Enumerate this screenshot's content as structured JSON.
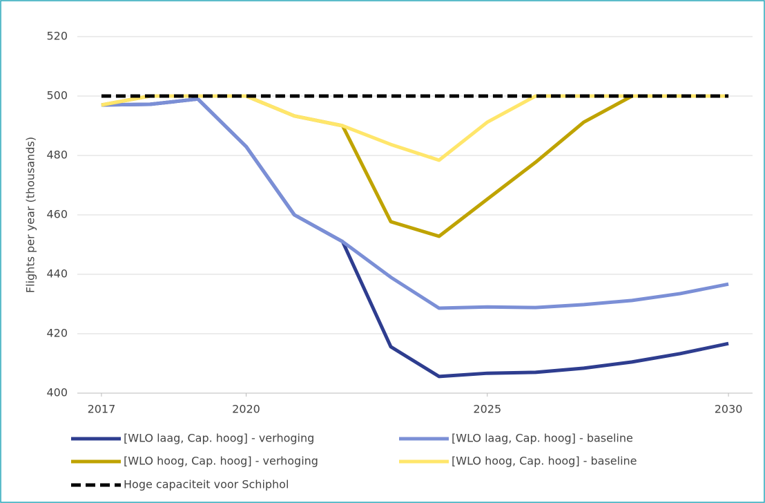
{
  "chart_data": {
    "type": "line",
    "y_label": "Flights per year (thousands)",
    "x": [
      2017,
      2018,
      2019,
      2020,
      2021,
      2022,
      2023,
      2024,
      2025,
      2026,
      2027,
      2028,
      2029,
      2030
    ],
    "xlim": [
      2016.5,
      2030.5
    ],
    "xticks": [
      2017,
      2020,
      2025,
      2030
    ],
    "ylim": [
      400,
      520
    ],
    "yticks": [
      400,
      420,
      440,
      460,
      480,
      500,
      520
    ],
    "grid": true,
    "legend": "bottom",
    "series": [
      {
        "name": "[WLO laag, Cap. hoog] - verhoging",
        "color": "#2e3d8f",
        "dash": false,
        "values": [
          497,
          497.2,
          499,
          483,
          460,
          451,
          415.6,
          405.6,
          406.7,
          407,
          408.4,
          410.5,
          413.3,
          416.7
        ]
      },
      {
        "name": "[WLO laag, Cap. hoog] - baseline",
        "color": "#7b8fd6",
        "dash": false,
        "values": [
          497,
          497.2,
          499,
          483,
          460,
          451,
          439,
          428.6,
          429,
          428.8,
          429.8,
          431.2,
          433.5,
          436.7
        ]
      },
      {
        "name": "[WLO hoog, Cap. hoog] - verhoging",
        "color": "#bfa300",
        "dash": false,
        "values": [
          497,
          500,
          500,
          500,
          493.3,
          490,
          457.7,
          452.8,
          465.3,
          477.7,
          491.2,
          500,
          500,
          500
        ]
      },
      {
        "name": "[WLO hoog, Cap. hoog] - baseline",
        "color": "#ffe66b",
        "dash": false,
        "values": [
          497,
          500,
          500,
          500,
          493.3,
          490,
          483.7,
          478.4,
          491.2,
          500,
          500,
          500,
          500,
          500
        ]
      },
      {
        "name": "Hoge capaciteit voor Schiphol",
        "color": "#000000",
        "dash": true,
        "values": [
          500,
          500,
          500,
          500,
          500,
          500,
          500,
          500,
          500,
          500,
          500,
          500,
          500,
          500
        ]
      }
    ]
  }
}
